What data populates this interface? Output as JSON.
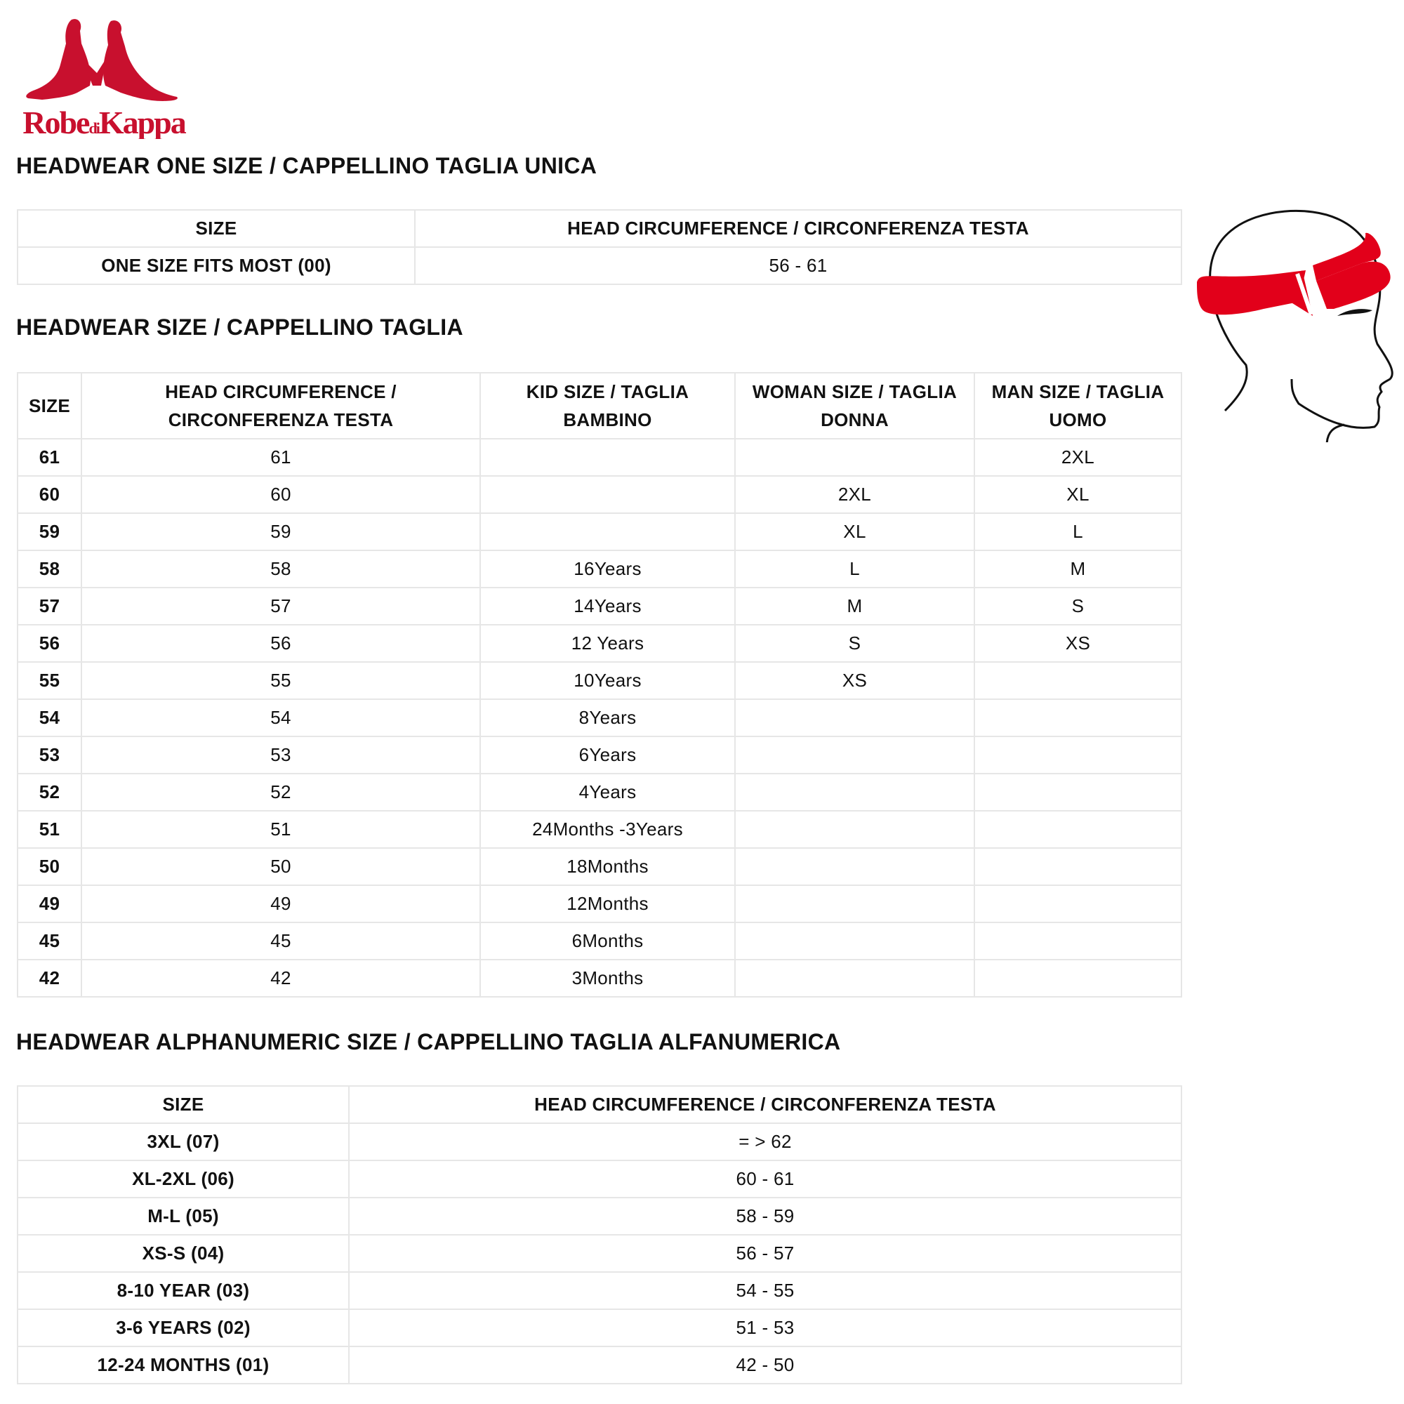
{
  "brand": {
    "logo_text": "Robe di Kappa",
    "color": "#c8102e"
  },
  "one_size": {
    "title": "HEADWEAR ONE SIZE / CAPPELLINO TAGLIA UNICA",
    "headers": [
      "SIZE",
      "HEAD CIRCUMFERENCE / CIRCONFERENZA TESTA"
    ],
    "rows": [
      [
        "ONE SIZE FITS MOST (00)",
        "56 - 61"
      ]
    ]
  },
  "size": {
    "title": "HEADWEAR SIZE / CAPPELLINO TAGLIA",
    "headers": [
      "SIZE",
      "HEAD CIRCUMFERENCE / CIRCONFERENZA TESTA",
      "KID SIZE / TAGLIA BAMBINO",
      "WOMAN SIZE / TAGLIA DONNA",
      "MAN SIZE / TAGLIA UOMO"
    ],
    "rows": [
      [
        "61",
        "61",
        "",
        "",
        "2XL"
      ],
      [
        "60",
        "60",
        "",
        "2XL",
        "XL"
      ],
      [
        "59",
        "59",
        "",
        "XL",
        "L"
      ],
      [
        "58",
        "58",
        "16Years",
        "L",
        "M"
      ],
      [
        "57",
        "57",
        "14Years",
        "M",
        "S"
      ],
      [
        "56",
        "56",
        "12 Years",
        "S",
        "XS"
      ],
      [
        "55",
        "55",
        "10Years",
        "XS",
        ""
      ],
      [
        "54",
        "54",
        "8Years",
        "",
        ""
      ],
      [
        "53",
        "53",
        "6Years",
        "",
        ""
      ],
      [
        "52",
        "52",
        "4Years",
        "",
        ""
      ],
      [
        "51",
        "51",
        "24Months -3Years",
        "",
        ""
      ],
      [
        "50",
        "50",
        "18Months",
        "",
        ""
      ],
      [
        "49",
        "49",
        "12Months",
        "",
        ""
      ],
      [
        "45",
        "45",
        "6Months",
        "",
        ""
      ],
      [
        "42",
        "42",
        "3Months",
        "",
        ""
      ]
    ]
  },
  "alpha": {
    "title": "HEADWEAR ALPHANUMERIC SIZE / CAPPELLINO TAGLIA ALFANUMERICA",
    "headers": [
      "SIZE",
      "HEAD CIRCUMFERENCE / CIRCONFERENZA TESTA"
    ],
    "rows": [
      [
        "3XL (07)",
        "= > 62"
      ],
      [
        "XL-2XL (06)",
        "60 - 61"
      ],
      [
        "M-L (05)",
        "58 - 59"
      ],
      [
        "XS-S (04)",
        "56 - 57"
      ],
      [
        "8-10 YEAR (03)",
        "54 - 55"
      ],
      [
        "3-6 YEARS (02)",
        "51 - 53"
      ],
      [
        "12-24 MONTHS (01)",
        "42 - 50"
      ]
    ]
  },
  "illustration": {
    "icon": "head-measurement-icon",
    "band_color": "#e2001a"
  }
}
